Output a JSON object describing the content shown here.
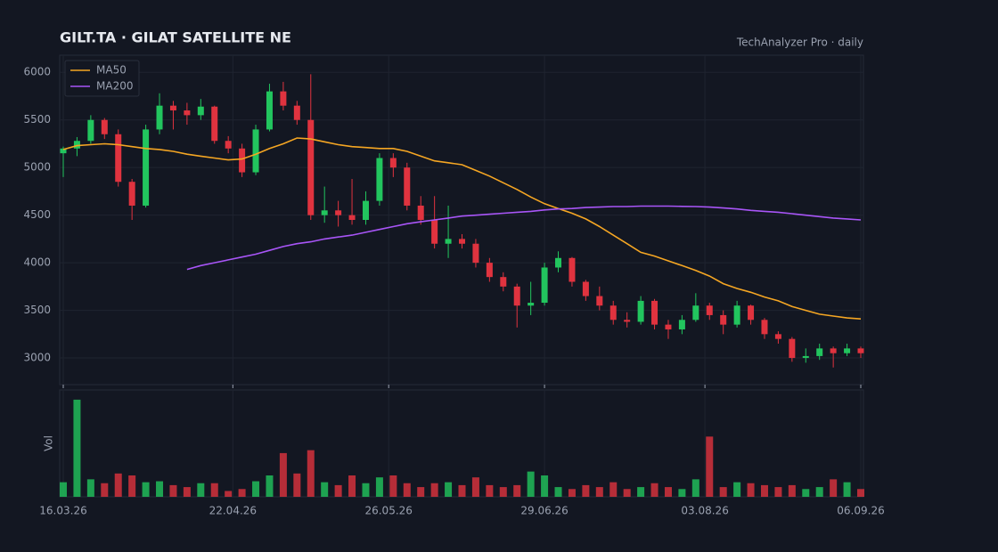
{
  "chart_data": {
    "type": "candlestick",
    "title": "GILT.TA  ·  GILAT SATELLITE NE",
    "subtitle": "TechAnalyzer Pro · daily",
    "volume_label": "Vol",
    "x": [
      "16.03.26",
      "19.03.26",
      "22.03.26",
      "25.03.26",
      "28.03.26",
      "31.03.26",
      "03.04.26",
      "06.04.26",
      "09.04.26",
      "12.04.26",
      "15.04.26",
      "18.04.26",
      "21.04.26",
      "24.04.26",
      "27.04.26",
      "30.04.26",
      "03.05.26",
      "06.05.26",
      "09.05.26",
      "12.05.26",
      "15.05.26",
      "18.05.26",
      "21.05.26",
      "24.05.26",
      "27.05.26",
      "30.05.26",
      "02.06.26",
      "05.06.26",
      "08.06.26",
      "11.06.26",
      "14.06.26",
      "17.06.26",
      "20.06.26",
      "23.06.26",
      "26.06.26",
      "29.06.26",
      "02.07.26",
      "05.07.26",
      "08.07.26",
      "11.07.26",
      "14.07.26",
      "17.07.26",
      "20.07.26",
      "23.07.26",
      "26.07.26",
      "29.07.26",
      "01.08.26",
      "04.08.26",
      "07.08.26",
      "10.08.26",
      "13.08.26",
      "16.08.26",
      "19.08.26",
      "22.08.26",
      "25.08.26",
      "28.08.26",
      "31.08.26",
      "03.09.26",
      "06.09.26"
    ],
    "open": [
      5150,
      5200,
      5280,
      5500,
      5350,
      4850,
      4600,
      5400,
      5650,
      5600,
      5550,
      5640,
      5280,
      5200,
      4950,
      5400,
      5800,
      5650,
      5500,
      4500,
      4550,
      4500,
      4450,
      4650,
      5100,
      5000,
      4600,
      4450,
      4200,
      4250,
      4200,
      4000,
      3850,
      3750,
      3550,
      3580,
      3950,
      4050,
      3800,
      3650,
      3550,
      3400,
      3380,
      3600,
      3350,
      3300,
      3400,
      3550,
      3450,
      3350,
      3550,
      3400,
      3250,
      3200,
      3000,
      3020,
      3100,
      3050,
      3100
    ],
    "high": [
      5220,
      5320,
      5550,
      5520,
      5400,
      4880,
      5450,
      5780,
      5700,
      5680,
      5720,
      5650,
      5330,
      5250,
      5450,
      5880,
      5900,
      5700,
      5980,
      4800,
      4650,
      4880,
      4750,
      5150,
      5150,
      5050,
      4700,
      4700,
      4600,
      4300,
      4250,
      4050,
      3900,
      3780,
      3800,
      4000,
      4120,
      4060,
      3820,
      3750,
      3600,
      3480,
      3650,
      3620,
      3400,
      3450,
      3680,
      3580,
      3500,
      3600,
      3560,
      3420,
      3280,
      3220,
      3100,
      3150,
      3120,
      3150,
      3120
    ],
    "low": [
      4900,
      5120,
      5250,
      5300,
      4800,
      4450,
      4580,
      5350,
      5400,
      5450,
      5500,
      5250,
      5150,
      4900,
      4920,
      5380,
      5600,
      5450,
      4450,
      4420,
      4380,
      4400,
      4400,
      4600,
      4900,
      4550,
      4400,
      4150,
      4050,
      4150,
      3950,
      3800,
      3700,
      3320,
      3450,
      3550,
      3900,
      3750,
      3600,
      3500,
      3350,
      3320,
      3350,
      3300,
      3200,
      3250,
      3380,
      3400,
      3250,
      3320,
      3350,
      3200,
      3150,
      2960,
      2950,
      2980,
      2900,
      3020,
      3000
    ],
    "close": [
      5200,
      5280,
      5500,
      5350,
      4850,
      4600,
      5400,
      5650,
      5600,
      5550,
      5640,
      5280,
      5200,
      4950,
      5400,
      5800,
      5650,
      5500,
      4500,
      4550,
      4500,
      4450,
      4650,
      5100,
      5000,
      4600,
      4450,
      4200,
      4250,
      4200,
      4000,
      3850,
      3750,
      3550,
      3580,
      3950,
      4050,
      3800,
      3650,
      3550,
      3400,
      3380,
      3600,
      3350,
      3300,
      3400,
      3550,
      3450,
      3350,
      3550,
      3400,
      3250,
      3200,
      3000,
      3020,
      3100,
      3050,
      3100,
      3050
    ],
    "volume": [
      15,
      100,
      18,
      14,
      24,
      22,
      15,
      16,
      12,
      10,
      14,
      14,
      6,
      8,
      16,
      22,
      45,
      24,
      48,
      15,
      12,
      22,
      14,
      20,
      22,
      14,
      10,
      14,
      15,
      12,
      20,
      12,
      10,
      12,
      26,
      22,
      10,
      8,
      12,
      10,
      15,
      8,
      10,
      14,
      10,
      8,
      18,
      62,
      10,
      15,
      14,
      12,
      10,
      12,
      8,
      10,
      18,
      15,
      8
    ],
    "up_color": "#22c55e",
    "down_color": "#e0333f",
    "series": [
      {
        "name": "MA50",
        "color": "#f5a623",
        "values": [
          5190,
          5230,
          5240,
          5250,
          5240,
          5220,
          5200,
          5190,
          5170,
          5140,
          5120,
          5100,
          5080,
          5090,
          5140,
          5200,
          5250,
          5310,
          5300,
          5270,
          5240,
          5220,
          5210,
          5200,
          5200,
          5170,
          5120,
          5070,
          5050,
          5030,
          4970,
          4910,
          4840,
          4770,
          4690,
          4620,
          4570,
          4520,
          4460,
          4380,
          4290,
          4200,
          4110,
          4070,
          4020,
          3970,
          3920,
          3860,
          3780,
          3730,
          3690,
          3640,
          3600,
          3540,
          3500,
          3460,
          3440,
          3420,
          3410
        ]
      },
      {
        "name": "MA200",
        "color": "#a855f7",
        "values": [
          null,
          null,
          null,
          null,
          null,
          null,
          null,
          null,
          null,
          3930,
          3970,
          4000,
          4030,
          4060,
          4090,
          4130,
          4170,
          4200,
          4220,
          4250,
          4270,
          4290,
          4320,
          4350,
          4380,
          4410,
          4430,
          4450,
          4470,
          4490,
          4500,
          4510,
          4520,
          4530,
          4540,
          4555,
          4565,
          4570,
          4580,
          4585,
          4590,
          4590,
          4595,
          4595,
          4595,
          4592,
          4590,
          4585,
          4575,
          4565,
          4550,
          4540,
          4530,
          4515,
          4500,
          4485,
          4470,
          4460,
          4450
        ]
      }
    ],
    "xlim": [
      "16.03.26",
      "06.09.26"
    ],
    "xticks": [
      "16.03.26",
      "22.04.26",
      "26.05.26",
      "29.06.26",
      "03.08.26",
      "06.09.26"
    ],
    "ylim": [
      2720,
      6180
    ],
    "yticks": [
      3000,
      3500,
      4000,
      4500,
      5000,
      5500,
      6000
    ],
    "volume_lim": [
      0,
      110
    ],
    "grid": true,
    "legend": "upper left"
  }
}
